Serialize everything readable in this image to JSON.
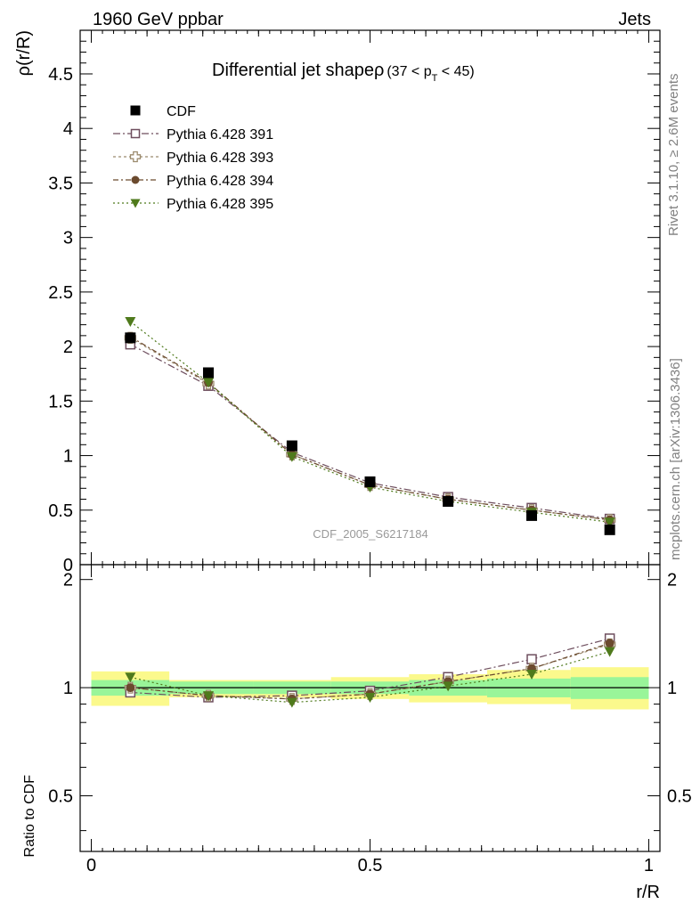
{
  "header": {
    "left": "1960 GeV ppbar",
    "right": "Jets"
  },
  "side_labels": {
    "rivet": "Rivet 3.1.10, ≥ 2.6M events",
    "mcplots": "mcplots.cern.ch [arXiv:1306.3436]"
  },
  "chart_data": {
    "type": "scatter",
    "title": "Differential jet shapeρ",
    "title_cut": "(37 < p",
    "title_cut_sub": "T",
    "title_cut_end": " < 45)",
    "watermark": "CDF_2005_S6217184",
    "xlabel": "r/R",
    "ylabel": "ρ(r/R)",
    "ratio_ylabel": "Ratio to CDF",
    "x": [
      0.07,
      0.21,
      0.36,
      0.5,
      0.64,
      0.79,
      0.93
    ],
    "xlim": [
      -0.02,
      1.02
    ],
    "ylim": [
      0,
      4.9
    ],
    "ratio_ylim": [
      0.35,
      2.2
    ],
    "x_ticks": [
      "0",
      "0.5",
      "1"
    ],
    "x_tick_values": [
      0,
      0.5,
      1
    ],
    "y_ticks": [
      "0",
      "0.5",
      "1",
      "1.5",
      "2",
      "2.5",
      "3",
      "3.5",
      "4",
      "4.5"
    ],
    "y_tick_values": [
      0,
      0.5,
      1,
      1.5,
      2,
      2.5,
      3,
      3.5,
      4,
      4.5
    ],
    "ratio_y_ticks": [
      "0.5",
      "1",
      "2"
    ],
    "ratio_y_tick_values": [
      0.5,
      1,
      2
    ],
    "data_series": {
      "name": "CDF",
      "values": [
        2.08,
        1.76,
        1.09,
        0.76,
        0.58,
        0.45,
        0.32
      ],
      "color": "#000000",
      "marker": "square"
    },
    "series": [
      {
        "name": "Pythia 6.428 391",
        "values": [
          2.02,
          1.64,
          1.03,
          0.75,
          0.62,
          0.52,
          0.42
        ],
        "ratio": [
          0.97,
          0.94,
          0.95,
          0.98,
          1.07,
          1.2,
          1.37
        ],
        "color": "#6e4e5e",
        "marker": "open-square",
        "dash": "8,3,2,3"
      },
      {
        "name": "Pythia 6.428 393",
        "values": [
          2.08,
          1.66,
          1.01,
          0.73,
          0.6,
          0.5,
          0.41
        ],
        "ratio": [
          1.0,
          0.95,
          0.93,
          0.96,
          1.04,
          1.13,
          1.32
        ],
        "color": "#9b8a6d",
        "marker": "open-cross",
        "dash": "3,3"
      },
      {
        "name": "Pythia 6.428 394",
        "values": [
          2.09,
          1.67,
          1.01,
          0.73,
          0.6,
          0.5,
          0.41
        ],
        "ratio": [
          1.0,
          0.95,
          0.93,
          0.96,
          1.04,
          1.13,
          1.33
        ],
        "color": "#6b4a2e",
        "marker": "circle",
        "dash": "6,3,2,3"
      },
      {
        "name": "Pythia 6.428 395",
        "values": [
          2.23,
          1.67,
          0.99,
          0.71,
          0.58,
          0.48,
          0.39
        ],
        "ratio": [
          1.07,
          0.95,
          0.91,
          0.94,
          1.01,
          1.09,
          1.26
        ],
        "color": "#4f7a1c",
        "marker": "triangle-down",
        "dash": "2,3"
      }
    ],
    "uncertainty_bands": {
      "bin_edges": [
        0,
        0.14,
        0.29,
        0.43,
        0.57,
        0.71,
        0.86,
        1.0
      ],
      "inner_low": [
        0.95,
        0.96,
        0.96,
        0.96,
        0.95,
        0.94,
        0.93
      ],
      "inner_high": [
        1.05,
        1.04,
        1.04,
        1.04,
        1.05,
        1.06,
        1.07
      ],
      "outer_low": [
        0.89,
        0.94,
        0.94,
        0.93,
        0.91,
        0.9,
        0.87
      ],
      "outer_high": [
        1.11,
        1.05,
        1.05,
        1.07,
        1.09,
        1.12,
        1.14
      ],
      "inner_color": "#99f599",
      "outer_color": "#fbf98c"
    },
    "grid": false,
    "legend_position": "top-left"
  }
}
